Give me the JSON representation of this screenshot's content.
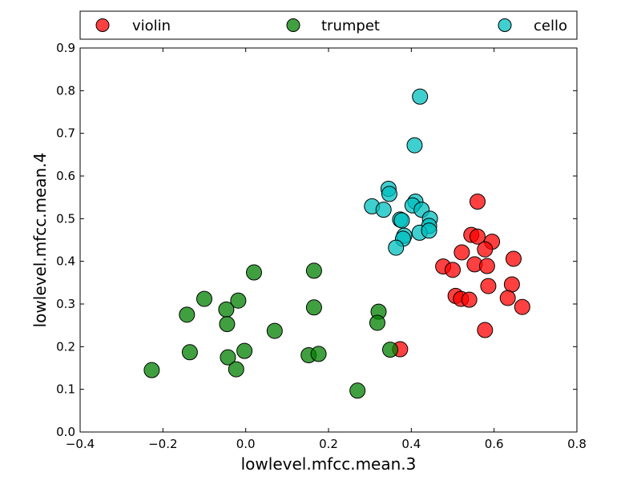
{
  "chart_data": {
    "type": "scatter",
    "xlabel": "lowlevel.mfcc.mean.3",
    "ylabel": "lowlevel.mfcc.mean.4",
    "xlim": [
      -0.4,
      0.8
    ],
    "ylim": [
      0.0,
      0.9
    ],
    "xticks": [
      "−0.4",
      "−0.2",
      "0.0",
      "0.2",
      "0.4",
      "0.6",
      "0.8"
    ],
    "yticks": [
      "0.0",
      "0.1",
      "0.2",
      "0.3",
      "0.4",
      "0.5",
      "0.6",
      "0.7",
      "0.8",
      "0.9"
    ],
    "grid": false,
    "legend_position": "top",
    "series": [
      {
        "name": "violin",
        "color": "#ff0000",
        "points": [
          [
            0.56,
            0.54
          ],
          [
            0.545,
            0.462
          ],
          [
            0.56,
            0.458
          ],
          [
            0.595,
            0.446
          ],
          [
            0.578,
            0.428
          ],
          [
            0.522,
            0.421
          ],
          [
            0.647,
            0.406
          ],
          [
            0.553,
            0.393
          ],
          [
            0.583,
            0.389
          ],
          [
            0.477,
            0.388
          ],
          [
            0.5,
            0.38
          ],
          [
            0.643,
            0.346
          ],
          [
            0.586,
            0.342
          ],
          [
            0.507,
            0.319
          ],
          [
            0.52,
            0.312
          ],
          [
            0.54,
            0.31
          ],
          [
            0.633,
            0.314
          ],
          [
            0.668,
            0.293
          ],
          [
            0.578,
            0.239
          ],
          [
            0.373,
            0.194
          ]
        ]
      },
      {
        "name": "trumpet",
        "color": "#008000",
        "points": [
          [
            0.02,
            0.374
          ],
          [
            0.165,
            0.378
          ],
          [
            -0.1,
            0.312
          ],
          [
            -0.018,
            0.308
          ],
          [
            -0.047,
            0.287
          ],
          [
            -0.142,
            0.275
          ],
          [
            0.165,
            0.292
          ],
          [
            -0.045,
            0.253
          ],
          [
            0.07,
            0.237
          ],
          [
            0.321,
            0.282
          ],
          [
            0.318,
            0.256
          ],
          [
            -0.135,
            0.187
          ],
          [
            -0.003,
            0.19
          ],
          [
            -0.043,
            0.175
          ],
          [
            0.152,
            0.18
          ],
          [
            0.176,
            0.183
          ],
          [
            0.349,
            0.193
          ],
          [
            -0.023,
            0.147
          ],
          [
            -0.227,
            0.145
          ],
          [
            0.27,
            0.097
          ]
        ]
      },
      {
        "name": "cello",
        "color": "#00bfbf",
        "points": [
          [
            0.421,
            0.786
          ],
          [
            0.408,
            0.672
          ],
          [
            0.345,
            0.57
          ],
          [
            0.347,
            0.558
          ],
          [
            0.41,
            0.54
          ],
          [
            0.403,
            0.531
          ],
          [
            0.305,
            0.529
          ],
          [
            0.333,
            0.521
          ],
          [
            0.425,
            0.521
          ],
          [
            0.445,
            0.5
          ],
          [
            0.373,
            0.498
          ],
          [
            0.377,
            0.496
          ],
          [
            0.443,
            0.483
          ],
          [
            0.42,
            0.467
          ],
          [
            0.443,
            0.472
          ],
          [
            0.383,
            0.46
          ],
          [
            0.38,
            0.453
          ],
          [
            0.363,
            0.432
          ]
        ]
      }
    ]
  }
}
